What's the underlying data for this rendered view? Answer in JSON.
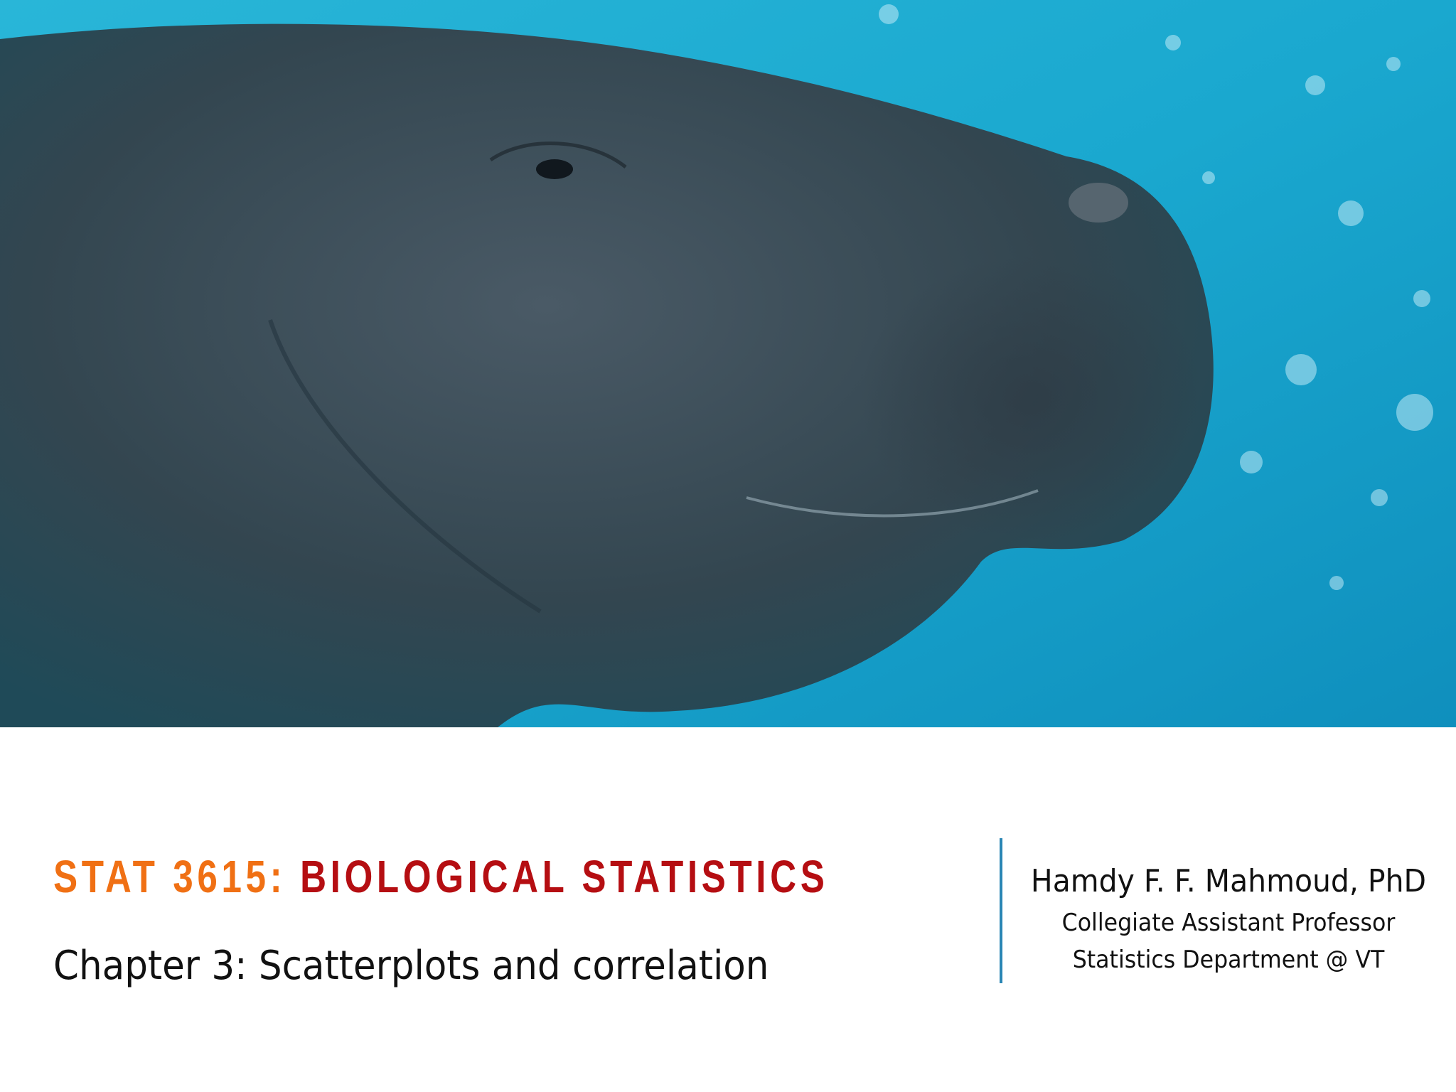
{
  "title": {
    "course": "STAT 3615:",
    "name": "BIOLOGICAL STATISTICS"
  },
  "subtitle": "Chapter 3: Scatterplots and correlation",
  "author": {
    "name": "Hamdy F. F. Mahmoud, PhD",
    "position": "Collegiate Assistant Professor",
    "department": "Statistics Department @ VT"
  }
}
